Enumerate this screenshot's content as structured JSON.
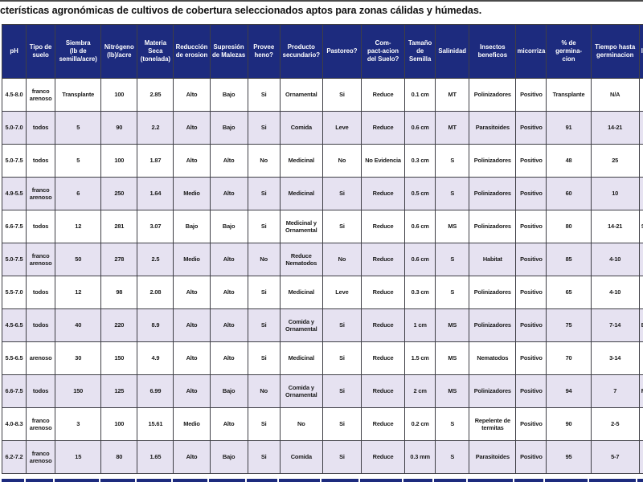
{
  "title": "cterísticas agronómicas de cultivos de cobertura seleccionados aptos para zonas cálidas y húmedas.",
  "colors": {
    "header_bg": "#1d2b7e",
    "row_alt_bg": "#e6e2f1",
    "border": "#3f3f46"
  },
  "table": {
    "columns": [
      "pH",
      "Tipo de\nsuelo",
      "Siembra\n(lb de\nsemilla/acre)",
      "Nitrógeno\n(lb)/acre",
      "Materia\nSeca\n(tonelada)",
      "Reducción\nde erosion",
      "Supresión\nde Malezas",
      "Provee\nheno?",
      "Producto\nsecundario?",
      "Pastoreo?",
      "Com-\npact-acion\ndel Suelo?",
      "Tamaño\nde\nSemilla",
      "Salinidad",
      "Insectos\nbeneficos",
      "micorriza",
      "% de\ngermina-\ncion",
      "Tiempo hasta\ngerminacion",
      "In"
    ],
    "rows": [
      [
        "4.5-8.0",
        "franco\narenoso",
        "Transplante",
        "100",
        "2.85",
        "Alto",
        "Bajo",
        "Si",
        "Ornamental",
        "Si",
        "Reduce",
        "0.1 cm",
        "MT",
        "Polinizadores",
        "Positivo",
        "Transplante",
        "N/A",
        ""
      ],
      [
        "5.0-7.0",
        "todos",
        "5",
        "90",
        "2.2",
        "Alto",
        "Bajo",
        "Si",
        "Comida",
        "Leve",
        "Reduce",
        "0.6 cm",
        "MT",
        "Parasitoides",
        "Positivo",
        "91",
        "14-21",
        ""
      ],
      [
        "5.0-7.5",
        "todos",
        "5",
        "100",
        "1.87",
        "Alto",
        "Alto",
        "No",
        "Medicinal",
        "No",
        "No Evidencia",
        "0.3 cm",
        "S",
        "Polinizadores",
        "Positivo",
        "48",
        "25",
        ""
      ],
      [
        "4.9-5.5",
        "franco\narenoso",
        "6",
        "250",
        "1.64",
        "Medio",
        "Alto",
        "Si",
        "Medicinal",
        "Si",
        "Reduce",
        "0.5 cm",
        "S",
        "Polinizadores",
        "Positivo",
        "60",
        "10",
        ""
      ],
      [
        "6.6-7.5",
        "todos",
        "12",
        "281",
        "3.07",
        "Bajo",
        "Bajo",
        "Si",
        "Medicinal y\nOrnamental",
        "Si",
        "Reduce",
        "0.6 cm",
        "MS",
        "Polinizadores",
        "Positivo",
        "80",
        "14-21",
        "Se"
      ],
      [
        "5.0-7.5",
        "franco\narenoso",
        "50",
        "278",
        "2.5",
        "Medio",
        "Alto",
        "No",
        "Reduce\nNematodos",
        "No",
        "Reduce",
        "0.6 cm",
        "S",
        "Habitat",
        "Positivo",
        "85",
        "4-10",
        ""
      ],
      [
        "5.5-7.0",
        "todos",
        "12",
        "98",
        "2.08",
        "Alto",
        "Alto",
        "Si",
        "Medicinal",
        "Leve",
        "Reduce",
        "0.3 cm",
        "S",
        "Polinizadores",
        "Positivo",
        "65",
        "4-10",
        ""
      ],
      [
        "4.5-6.5",
        "todos",
        "40",
        "220",
        "8.9",
        "Alto",
        "Alto",
        "Si",
        "Comida y\nOrnamental",
        "Si",
        "Reduce",
        "1 cm",
        "MS",
        "Polinizadores",
        "Positivo",
        "75",
        "7-14",
        "B"
      ],
      [
        "5.5-6.5",
        "arenoso",
        "30",
        "150",
        "4.9",
        "Alto",
        "Alto",
        "Si",
        "Medicinal",
        "Si",
        "Reduce",
        "1.5 cm",
        "MS",
        "Nematodos",
        "Positivo",
        "70",
        "3-14",
        ""
      ],
      [
        "6.6-7.5",
        "todos",
        "150",
        "125",
        "6.99",
        "Alto",
        "Bajo",
        "No",
        "Comida y\nOrnamental",
        "Si",
        "Reduce",
        "2 cm",
        "MS",
        "Polinizadores",
        "Positivo",
        "94",
        "7",
        "F"
      ],
      [
        "4.0-8.3",
        "franco\narenoso",
        "3",
        "100",
        "15.61",
        "Medio",
        "Alto",
        "Si",
        "No",
        "Si",
        "Reduce",
        "0.2 cm",
        "S",
        "Repelente de\ntermitas",
        "Positivo",
        "90",
        "2-5",
        ""
      ],
      [
        "6.2-7.2",
        "franco\narenoso",
        "15",
        "80",
        "1.65",
        "Alto",
        "Bajo",
        "Si",
        "Comida",
        "Si",
        "Reduce",
        "0.3 mm",
        "S",
        "Parasitoides",
        "Positivo",
        "95",
        "5-7",
        ""
      ]
    ]
  }
}
